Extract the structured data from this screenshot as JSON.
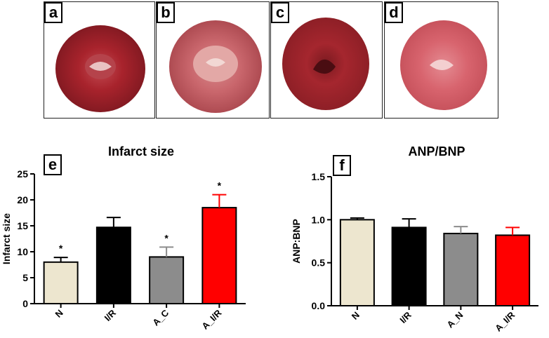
{
  "photos": [
    {
      "label": "a"
    },
    {
      "label": "b"
    },
    {
      "label": "c"
    },
    {
      "label": "d"
    }
  ],
  "colors": {
    "N": "#ede6cf",
    "I/R": "#000000",
    "A_C": "#8c8c8c",
    "A_I/R": "#ff0000",
    "tissue_dark": "#8f1d24",
    "tissue_pale": "#d9727a"
  },
  "chart_data": [
    {
      "panel_label": "e",
      "type": "bar",
      "title": "Infarct size",
      "xlabel": "",
      "ylabel": "Infarct size",
      "categories": [
        "N",
        "I/R",
        "A_C",
        "A_I/R"
      ],
      "values": [
        8,
        14.7,
        9,
        18.5
      ],
      "errors": [
        0.9,
        1.9,
        1.9,
        2.5
      ],
      "significance": [
        "*",
        "",
        "*",
        "*"
      ],
      "ylim": [
        0,
        25
      ],
      "yticks": [
        "0",
        "5",
        "10",
        "15",
        "20",
        "25"
      ],
      "grid": false
    },
    {
      "panel_label": "f",
      "type": "bar",
      "title": "ANP/BNP",
      "xlabel": "",
      "ylabel": "ANP:BNP",
      "categories": [
        "N",
        "I/R",
        "A_N",
        "A_I/R"
      ],
      "values": [
        1.0,
        0.91,
        0.84,
        0.82
      ],
      "errors": [
        0.02,
        0.1,
        0.08,
        0.09
      ],
      "significance": [
        "",
        "",
        "",
        ""
      ],
      "ylim": [
        0,
        1.5
      ],
      "yticks": [
        "0.0",
        "0.5",
        "1.0",
        "1.5"
      ],
      "grid": false
    }
  ]
}
